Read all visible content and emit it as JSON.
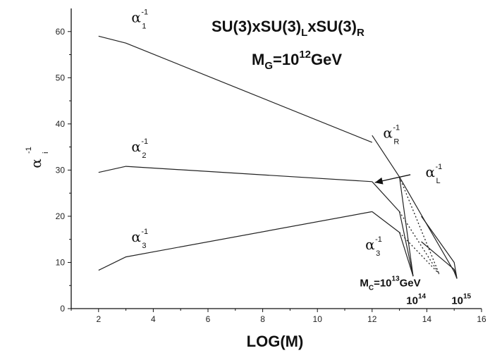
{
  "chart_data": {
    "type": "line",
    "title": "SU(3)xSU(3)LxSU(3)R",
    "title_parts": {
      "base": "SU(3)xSU(3)",
      "sub1": "L",
      "mid": "xSU(3)",
      "sub2": "R"
    },
    "subtitle_parts": {
      "base": "M",
      "sub": "G",
      "eq": "=10",
      "sup": "12",
      "unit": "GeV"
    },
    "xlabel": "LOG(M)",
    "ylabel_parts": {
      "base": "α",
      "sup": "-1",
      "sub": "i"
    },
    "xlim": [
      1,
      16
    ],
    "ylim": [
      0,
      65
    ],
    "xticks": [
      2,
      4,
      6,
      8,
      10,
      12,
      14,
      16
    ],
    "yticks": [
      0,
      10,
      20,
      30,
      40,
      50,
      60
    ],
    "series": [
      {
        "name": "α-1 1",
        "x": [
          2,
          3,
          12
        ],
        "y": [
          59,
          57.5,
          36
        ],
        "style": "solid"
      },
      {
        "name": "α-1 2",
        "x": [
          2,
          3,
          12
        ],
        "y": [
          29.5,
          30.8,
          27.5
        ],
        "style": "solid"
      },
      {
        "name": "α-1 3",
        "x": [
          2,
          3,
          12
        ],
        "y": [
          8.3,
          11.2,
          21
        ],
        "style": "solid"
      },
      {
        "name": "α-1 R",
        "x": [
          12,
          13,
          13.5
        ],
        "y": [
          37.5,
          28.5,
          7
        ],
        "style": "solid"
      },
      {
        "name": "α-1 L",
        "x": [
          12,
          13,
          13.5
        ],
        "y": [
          27.5,
          21,
          7
        ],
        "style": "solid"
      },
      {
        "name": "α-1 3 (M_C>12)",
        "x": [
          12,
          13,
          13.5
        ],
        "y": [
          21,
          16.5,
          7
        ],
        "style": "solid"
      },
      {
        "name": "α-1 R (M_C=10^14)",
        "x": [
          13,
          14.45
        ],
        "y": [
          28.5,
          7.5
        ],
        "style": "dotted"
      },
      {
        "name": "α-1 L (M_C=10^14)",
        "x": [
          13,
          14.45
        ],
        "y": [
          21,
          7.5
        ],
        "style": "dotted"
      },
      {
        "name": "α-1 3 (M_C=10^14)",
        "x": [
          13,
          14.45
        ],
        "y": [
          16.5,
          7.5
        ],
        "style": "dotted"
      },
      {
        "name": "α-1 R (M_C=10^15)",
        "x": [
          13,
          15,
          15.1
        ],
        "y": [
          28.5,
          8,
          6.5
        ],
        "style": "solid"
      },
      {
        "name": "α-1 L (M_C=10^15)",
        "x": [
          13.8,
          15,
          15.1
        ],
        "y": [
          20,
          10,
          6.5
        ],
        "style": "solid"
      },
      {
        "name": "α-1 3 (M_C=10^15)",
        "x": [
          13.8,
          15,
          15.1
        ],
        "y": [
          14.5,
          8.5,
          6.5
        ],
        "style": "solid"
      }
    ],
    "annotations": [
      {
        "base": "α",
        "sup": "-1",
        "sub": "1",
        "x": 3.2,
        "y": 62
      },
      {
        "base": "α",
        "sup": "-1",
        "sub": "2",
        "x": 3.2,
        "y": 34
      },
      {
        "base": "α",
        "sup": "-1",
        "sub": "3",
        "x": 3.2,
        "y": 14.5
      },
      {
        "base": "α",
        "sup": "-1",
        "sub": "R",
        "x": 12.4,
        "y": 37
      },
      {
        "base": "α",
        "sup": "-1",
        "sub": "L",
        "x": 13.95,
        "y": 28.5
      },
      {
        "base": "α",
        "sup": "-1",
        "sub": "3",
        "x": 11.75,
        "y": 12.8
      }
    ],
    "markers": [
      {
        "base": "M",
        "sub": "C",
        "eq": "=10",
        "sup": "13",
        "unit": "GeV",
        "x": 11.55,
        "y": 4.8
      },
      {
        "base": "10",
        "sup": "14",
        "x": 13.25,
        "y": 1
      },
      {
        "base": "10",
        "sup": "15",
        "x": 14.9,
        "y": 1
      }
    ],
    "arrow": {
      "from": [
        13.4,
        29
      ],
      "to": [
        12.1,
        27.3
      ]
    }
  }
}
